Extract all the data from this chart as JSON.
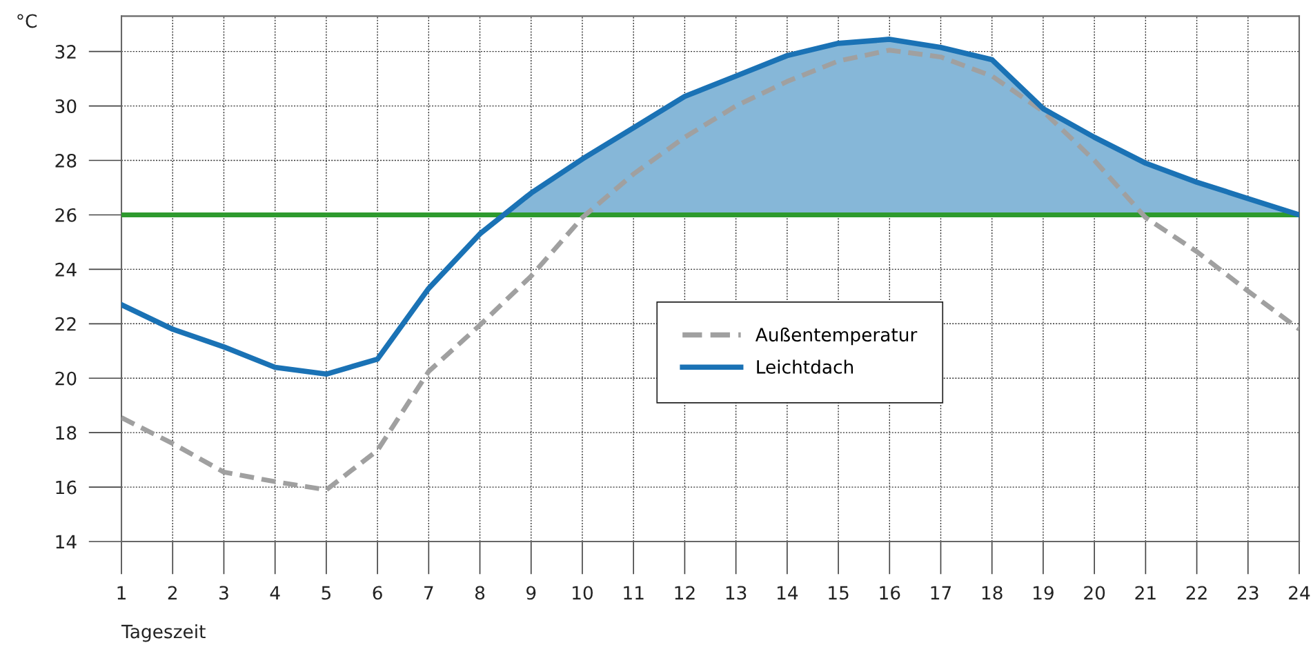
{
  "chart_data": {
    "type": "line",
    "xlabel": "Tageszeit",
    "ylabel": "°C",
    "x": [
      1,
      2,
      3,
      4,
      5,
      6,
      7,
      8,
      9,
      10,
      11,
      12,
      13,
      14,
      15,
      16,
      17,
      18,
      19,
      20,
      21,
      22,
      23,
      24
    ],
    "series": [
      {
        "name": "Außentemperatur",
        "color": "#a0a0a0",
        "line_style": "dashed",
        "values": [
          18.55,
          17.6,
          16.55,
          16.2,
          15.9,
          17.35,
          20.25,
          21.95,
          23.75,
          25.9,
          27.5,
          28.85,
          30.0,
          30.9,
          31.65,
          32.05,
          31.8,
          31.1,
          29.8,
          28.0,
          25.9,
          24.65,
          23.2,
          21.8
        ]
      },
      {
        "type": "area",
        "color": "#86b7d8",
        "x": [
          8.47,
          9,
          10,
          11,
          12,
          13,
          14,
          15,
          16,
          17,
          18,
          19,
          20,
          21,
          22,
          23,
          24
        ],
        "values": [
          26.0,
          26.8,
          28.05,
          29.2,
          30.35,
          31.1,
          31.85,
          32.3,
          32.45,
          32.15,
          31.7,
          29.9,
          28.85,
          27.9,
          27.2,
          26.6,
          26.0
        ]
      },
      {
        "name": "Leichtdach",
        "color": "#1a72b5",
        "line_style": "solid",
        "values": [
          22.7,
          21.8,
          21.15,
          20.4,
          20.15,
          20.7,
          23.3,
          25.3,
          26.8,
          28.05,
          29.2,
          30.35,
          31.1,
          31.85,
          32.3,
          32.45,
          32.15,
          31.7,
          29.9,
          28.85,
          27.9,
          27.2,
          26.6,
          26.0
        ]
      }
    ],
    "ref_lines": [
      {
        "axis": "y",
        "value": 26,
        "color": "#2e9a2e"
      }
    ],
    "xlim": [
      1,
      24
    ],
    "xticks": [
      1,
      2,
      3,
      4,
      5,
      6,
      7,
      8,
      9,
      10,
      11,
      12,
      13,
      14,
      15,
      16,
      17,
      18,
      19,
      20,
      21,
      22,
      23,
      24
    ],
    "ylim": [
      14,
      33.3
    ],
    "yticks": [
      14,
      16,
      18,
      20,
      22,
      24,
      26,
      28,
      30,
      32
    ],
    "grid": true,
    "legend": "right",
    "marker": "none"
  }
}
